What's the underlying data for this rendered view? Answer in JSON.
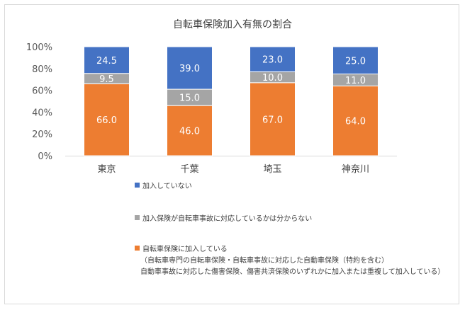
{
  "chart_data": {
    "type": "bar",
    "stacked": true,
    "title": "自転車保険加入有無の割合",
    "categories": [
      "東京",
      "千葉",
      "埼玉",
      "神奈川"
    ],
    "ylim": [
      0,
      100
    ],
    "yticks": [
      "0%",
      "20%",
      "40%",
      "60%",
      "80%",
      "100%"
    ],
    "grid": false,
    "legend_position": "bottom",
    "series": [
      {
        "name": "自転車保険に加入している",
        "color": "#ed7d31",
        "values": [
          66.0,
          46.0,
          67.0,
          64.0
        ],
        "labels": [
          "66.0",
          "46.0",
          "67.0",
          "64.0"
        ]
      },
      {
        "name": "加入保険が自転車事故に対応しているかは分からない",
        "color": "#a5a5a5",
        "values": [
          9.5,
          15.0,
          10.0,
          11.0
        ],
        "labels": [
          "9.5",
          "15.0",
          "10.0",
          "11.0"
        ]
      },
      {
        "name": "加入していない",
        "color": "#4472c4",
        "values": [
          24.5,
          39.0,
          23.0,
          25.0
        ],
        "labels": [
          "24.5",
          "39.0",
          "23.0",
          "25.0"
        ]
      }
    ]
  },
  "legend": {
    "not_enrolled": "加入していない",
    "unknown": "加入保険が自転車事故に対応しているかは分からない",
    "enrolled": "自転車保険に加入している",
    "enrolled_note_1": "（自転車専門の自転車保険・自転車事故に対応した自動車保険（特約を含む）",
    "enrolled_note_2": "自動車事故に対応した傷害保険、傷害共済保険のいずれかに加入または重複して加入している）"
  }
}
